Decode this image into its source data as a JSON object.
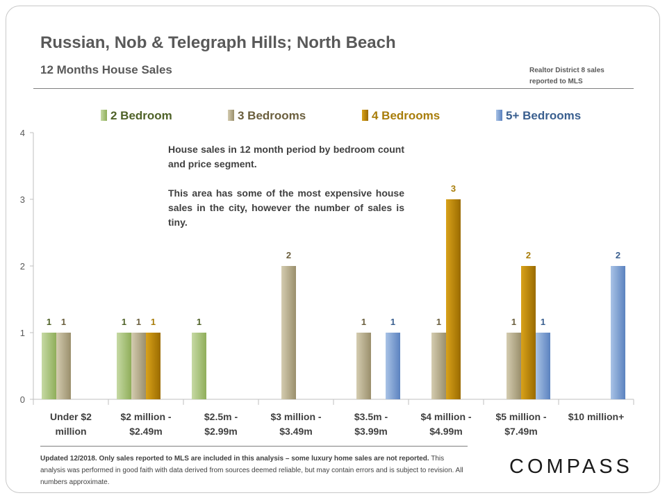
{
  "header": {
    "title": "Russian, Nob & Telegraph Hills; North Beach",
    "subtitle": "12 Months  House Sales",
    "source_line1": "Realtor District  8 sales",
    "source_line2": "reported to MLS"
  },
  "annotation": {
    "para1": "House sales in 12 month period by bedroom count and price segment.",
    "para2": "This area has some of the most expensive house sales in the city, however the number of sales is tiny."
  },
  "footer": {
    "bold_part": "Updated 12/2018. Only sales reported to MLS are included in this analysis – some luxury home sales are not reported.",
    "normal_part": " This analysis was performed in good faith with data derived from sources deemed reliable, but may contain errors and is subject to revision. All numbers approximate."
  },
  "logo": "COMPASS",
  "colors": {
    "2 Bedroom": [
      "#c6d9a4",
      "#8fae5a",
      "#4f6228"
    ],
    "3 Bedrooms": [
      "#d4ccb0",
      "#9a8f6c",
      "#6b5f3e"
    ],
    "4 Bedrooms": [
      "#d9a21a",
      "#9a6b00",
      "#a87d0a"
    ],
    "5+ Bedrooms": [
      "#a9c3e6",
      "#5b82bf",
      "#3a5f8f"
    ]
  },
  "chart_data": {
    "type": "bar",
    "categories": [
      [
        "Under $2",
        "million"
      ],
      [
        "$2 million -",
        "$2.49m"
      ],
      [
        "$2.5m -",
        "$2.99m"
      ],
      [
        "$3 million -",
        "$3.49m"
      ],
      [
        "$3.5m -",
        "$3.99m"
      ],
      [
        "$4 million -",
        "$4.99m"
      ],
      [
        "$5 million -",
        "$7.49m"
      ],
      [
        "$10 million+"
      ]
    ],
    "series": [
      {
        "name": "2 Bedroom",
        "values": [
          1,
          1,
          1,
          null,
          null,
          null,
          null,
          null
        ]
      },
      {
        "name": "3 Bedrooms",
        "values": [
          1,
          1,
          null,
          2,
          1,
          1,
          1,
          null
        ]
      },
      {
        "name": "4 Bedrooms",
        "values": [
          null,
          1,
          null,
          null,
          null,
          3,
          2,
          null
        ]
      },
      {
        "name": "5+ Bedrooms",
        "values": [
          null,
          null,
          null,
          null,
          1,
          null,
          1,
          2
        ]
      }
    ],
    "yticks": [
      0,
      1,
      2,
      3,
      4
    ],
    "ylim": [
      0,
      4
    ],
    "legend_position": "top",
    "xlabel": "",
    "ylabel": ""
  }
}
